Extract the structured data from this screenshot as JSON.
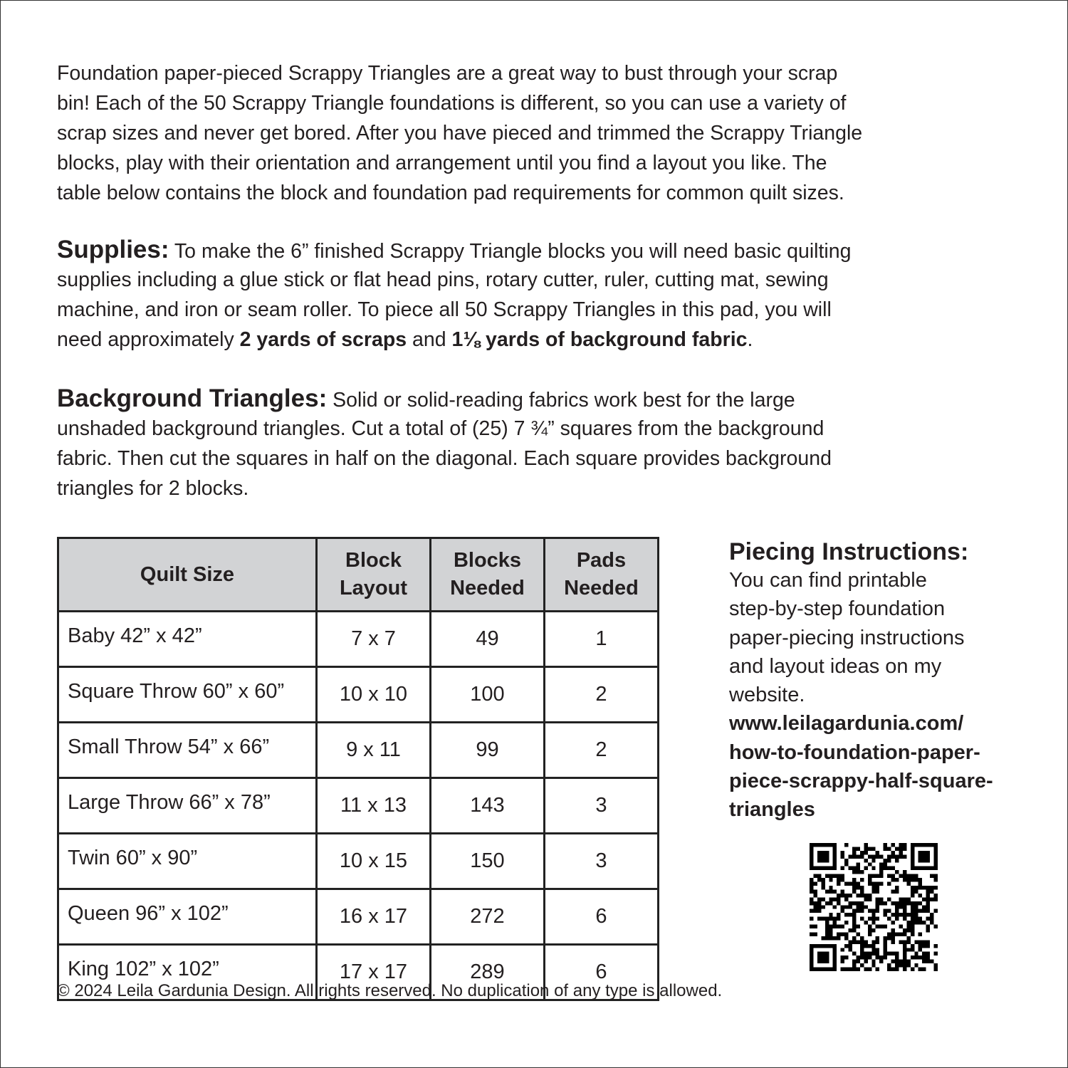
{
  "intro": {
    "lines": [
      "Foundation paper-pieced Scrappy Triangles are a great way to bust through your scrap",
      "bin! Each of the 50 Scrappy Triangle foundations is different, so you can use a variety of",
      "scrap sizes and never get bored. After you have pieced and trimmed the Scrappy Triangle",
      "blocks, play with their orientation and arrangement until you find a layout you like. The",
      "table below contains the block and foundation pad requirements for common quilt sizes."
    ]
  },
  "supplies": {
    "heading": "Supplies:",
    "line1": " To make the 6” finished Scrappy Triangle blocks you will need basic quilting",
    "line2": "supplies including a glue stick or flat head pins, rotary cutter, ruler, cutting mat, sewing",
    "line3": "machine, and iron or seam roller.  To piece all 50 Scrappy Triangles in this pad, you will",
    "line4_a": "need approximately ",
    "line4_b": "2 yards of scraps",
    "line4_c": " and ",
    "line4_d": "1⅛ yards of background fabric",
    "line4_e": "."
  },
  "background": {
    "heading": "Background Triangles:",
    "line1": " Solid or solid-reading fabrics work best for the large",
    "line2": "unshaded background triangles. Cut a total of (25) 7 ¾” squares from the background",
    "line3": "fabric. Then cut the squares in half on the diagonal. Each square provides background",
    "line4": "triangles for 2 blocks."
  },
  "table": {
    "headers": [
      "Quilt Size",
      "Block\nLayout",
      "Blocks\nNeeded",
      "Pads\nNeeded"
    ],
    "header_lines": [
      [
        "Quilt Size"
      ],
      [
        "Block",
        "Layout"
      ],
      [
        "Blocks",
        "Needed"
      ],
      [
        "Pads",
        "Needed"
      ]
    ],
    "rows": [
      [
        "Baby 42” x 42”",
        "7 x 7",
        "49",
        "1"
      ],
      [
        "Square Throw 60” x 60”",
        "10 x 10",
        "100",
        "2"
      ],
      [
        "Small Throw 54” x 66”",
        "9 x 11",
        "99",
        "2"
      ],
      [
        "Large Throw 66” x 78”",
        "11 x 13",
        "143",
        "3"
      ],
      [
        "Twin 60” x 90”",
        "10 x 15",
        "150",
        "3"
      ],
      [
        "Queen 96” x 102”",
        "16 x 17",
        "272",
        "6"
      ],
      [
        "King 102” x 102”",
        "17 x 17",
        "289",
        "6"
      ]
    ],
    "header_color": "#d2d3d5"
  },
  "piecing": {
    "heading": "Piecing Instructions:",
    "lines": [
      "You can find printable",
      "step-by-step foundation",
      "paper-piecing instructions",
      "and layout ideas on my",
      "website."
    ],
    "url_lines": [
      "www.leilagardunia.com/",
      "how-to-foundation-paper-",
      "piece-scrappy-half-square-",
      "triangles"
    ],
    "qr_icon": "qr-code-icon"
  },
  "footer": "© 2024 Leila Gardunia Design. All rights reserved. No duplication of any type is allowed."
}
